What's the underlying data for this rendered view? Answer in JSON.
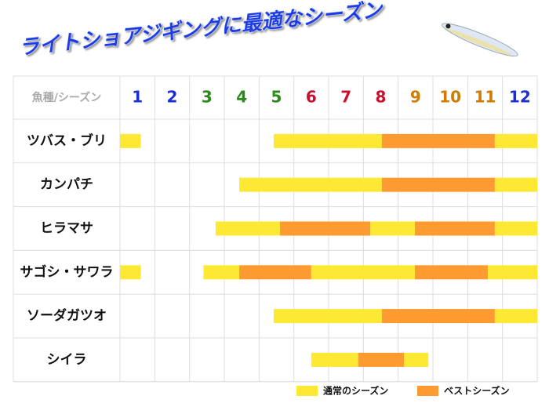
{
  "chart_data": {
    "type": "timeline",
    "title": "ライトショアジギングに最適なシーズン",
    "header": "魚種/シーズン",
    "categories": [
      "1",
      "2",
      "3",
      "4",
      "5",
      "6",
      "7",
      "8",
      "9",
      "10",
      "11",
      "12"
    ],
    "category_colors": [
      "#1a2fd6",
      "#1a2fd6",
      "#2a8a1a",
      "#2a8a1a",
      "#2a8a1a",
      "#c8102e",
      "#c8102e",
      "#c8102e",
      "#d07a00",
      "#d07a00",
      "#d07a00",
      "#1a2fd6"
    ],
    "xlim": [
      1,
      13
    ],
    "series": [
      {
        "name": "通常のシーズン",
        "color": "#fde833"
      },
      {
        "name": "ベストシーズン",
        "color": "#fd9a30"
      }
    ],
    "rows": [
      {
        "name": "ツバス・ブリ",
        "segments": [
          {
            "series": 0,
            "start": 1,
            "end": 1.6
          },
          {
            "series": 0,
            "start": 5.42,
            "end": 8.53
          },
          {
            "series": 1,
            "start": 8.53,
            "end": 11.78
          },
          {
            "series": 0,
            "start": 11.78,
            "end": 13
          }
        ]
      },
      {
        "name": "カンパチ",
        "segments": [
          {
            "series": 0,
            "start": 4.43,
            "end": 8.53
          },
          {
            "series": 1,
            "start": 8.53,
            "end": 11.78
          },
          {
            "series": 0,
            "start": 11.78,
            "end": 13
          }
        ]
      },
      {
        "name": "ヒラマサ",
        "segments": [
          {
            "series": 0,
            "start": 3.75,
            "end": 5.6
          },
          {
            "series": 1,
            "start": 5.6,
            "end": 8.2
          },
          {
            "series": 0,
            "start": 8.2,
            "end": 9.48
          },
          {
            "series": 1,
            "start": 9.48,
            "end": 11.78
          },
          {
            "series": 0,
            "start": 11.78,
            "end": 13
          }
        ]
      },
      {
        "name": "サゴシ・サワラ",
        "segments": [
          {
            "series": 0,
            "start": 1,
            "end": 1.6
          },
          {
            "series": 0,
            "start": 3.4,
            "end": 4.43
          },
          {
            "series": 1,
            "start": 4.43,
            "end": 6.5
          },
          {
            "series": 0,
            "start": 6.5,
            "end": 9.48
          },
          {
            "series": 1,
            "start": 9.48,
            "end": 11.58
          },
          {
            "series": 0,
            "start": 11.58,
            "end": 13
          }
        ]
      },
      {
        "name": "ソーダガツオ",
        "segments": [
          {
            "series": 0,
            "start": 5.42,
            "end": 8.53
          },
          {
            "series": 1,
            "start": 8.53,
            "end": 11.78
          },
          {
            "series": 0,
            "start": 11.78,
            "end": 13
          }
        ]
      },
      {
        "name": "シイラ",
        "segments": [
          {
            "series": 0,
            "start": 6.5,
            "end": 7.85
          },
          {
            "series": 1,
            "start": 7.85,
            "end": 9.17
          },
          {
            "series": 0,
            "start": 9.17,
            "end": 9.87
          }
        ]
      }
    ]
  }
}
